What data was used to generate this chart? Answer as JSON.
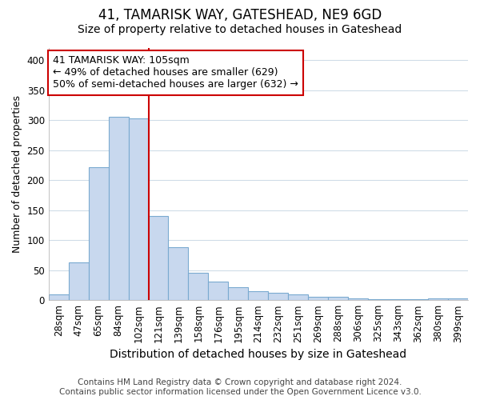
{
  "title": "41, TAMARISK WAY, GATESHEAD, NE9 6GD",
  "subtitle": "Size of property relative to detached houses in Gateshead",
  "xlabel": "Distribution of detached houses by size in Gateshead",
  "ylabel": "Number of detached properties",
  "categories": [
    "28sqm",
    "47sqm",
    "65sqm",
    "84sqm",
    "102sqm",
    "121sqm",
    "139sqm",
    "158sqm",
    "176sqm",
    "195sqm",
    "214sqm",
    "232sqm",
    "251sqm",
    "269sqm",
    "288sqm",
    "306sqm",
    "325sqm",
    "343sqm",
    "362sqm",
    "380sqm",
    "399sqm"
  ],
  "values": [
    10,
    63,
    221,
    305,
    303,
    140,
    88,
    46,
    31,
    22,
    15,
    12,
    10,
    5,
    5,
    3,
    2,
    2,
    1,
    3,
    3
  ],
  "bar_color": "#c8d8ee",
  "bar_edge_color": "#7aaad0",
  "vline_index": 4,
  "vline_color": "#cc0000",
  "annotation_text": "41 TAMARISK WAY: 105sqm\n← 49% of detached houses are smaller (629)\n50% of semi-detached houses are larger (632) →",
  "annotation_box_facecolor": "#ffffff",
  "annotation_box_edgecolor": "#cc0000",
  "ylim": [
    0,
    420
  ],
  "yticks": [
    0,
    50,
    100,
    150,
    200,
    250,
    300,
    350,
    400
  ],
  "background_color": "#ffffff",
  "grid_color": "#d0dce8",
  "title_fontsize": 12,
  "subtitle_fontsize": 10,
  "xlabel_fontsize": 10,
  "ylabel_fontsize": 9,
  "tick_fontsize": 8.5,
  "annotation_fontsize": 9,
  "footer_fontsize": 7.5,
  "footer_line1": "Contains HM Land Registry data © Crown copyright and database right 2024.",
  "footer_line2": "Contains public sector information licensed under the Open Government Licence v3.0."
}
